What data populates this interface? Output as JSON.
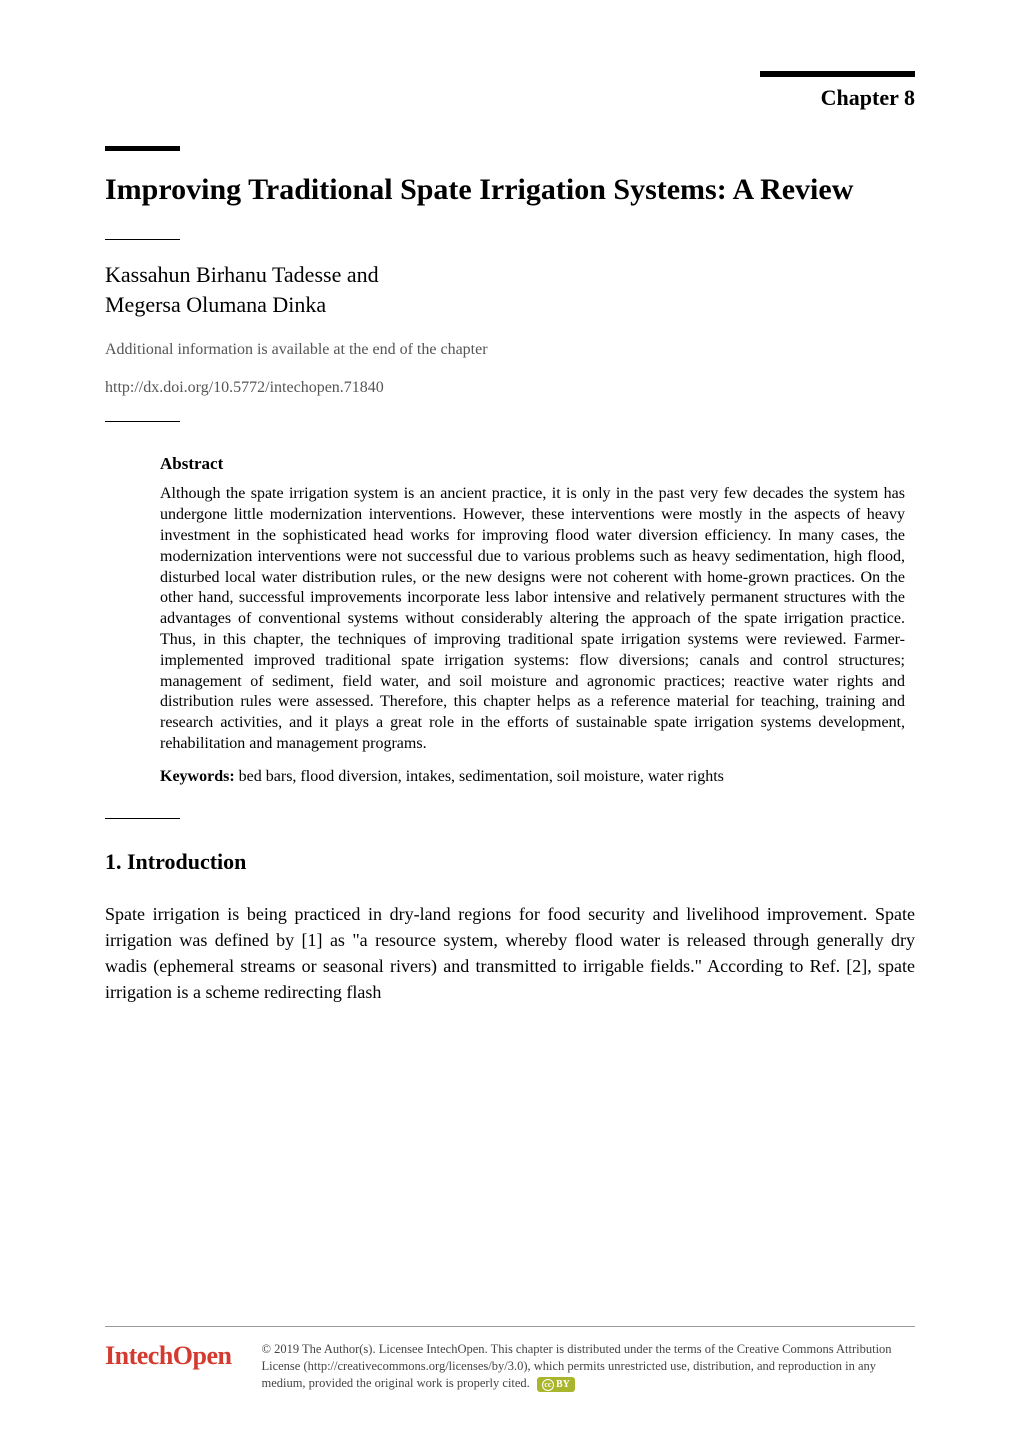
{
  "chapter": {
    "label": "Chapter 8",
    "title": "Improving Traditional Spate Irrigation Systems: A Review"
  },
  "authors": {
    "line1": "Kassahun Birhanu Tadesse and",
    "line2": "Megersa Olumana Dinka"
  },
  "additional_info": "Additional information is available at the end of the chapter",
  "doi": "http://dx.doi.org/10.5772/intechopen.71840",
  "abstract": {
    "heading": "Abstract",
    "text": "Although the spate irrigation system is an ancient practice, it is only in the past very few decades the system has undergone little modernization interventions. However, these interventions were mostly in the aspects of heavy investment in the sophisticated head works for improving flood water diversion efficiency. In many cases, the modernization interventions were not successful due to various problems such as heavy sedimentation, high flood, disturbed local water distribution rules, or the new designs were not coherent with home-grown practices. On the other hand, successful improvements incorporate less labor intensive and relatively permanent structures with the advantages of conventional systems without considerably altering the approach of the spate irrigation practice. Thus, in this chapter, the techniques of improving traditional spate irrigation systems were reviewed. Farmer-implemented improved traditional spate irrigation systems: flow diversions; canals and control structures; management of sediment, field water, and soil moisture and agronomic practices; reactive water rights and distribution rules were assessed. Therefore, this chapter helps as a reference material for teaching, training and research activities, and it plays a great role in the efforts of sustainable spate irrigation systems development, rehabilitation and management programs.",
    "keywords_label": "Keywords:",
    "keywords_text": " bed bars, flood diversion, intakes, sedimentation, soil moisture, water rights"
  },
  "section1": {
    "heading": "1. Introduction",
    "body": "Spate irrigation is being practiced in dry-land regions for food security and livelihood improvement. Spate irrigation was defined by [1] as \"a resource system, whereby flood water is released through generally dry wadis (ephemeral streams or seasonal rivers) and transmitted to irrigable fields.\" According to Ref. [2], spate irrigation is a scheme redirecting flash"
  },
  "footer": {
    "logo": "IntechOpen",
    "copyright": "© 2019 The Author(s). Licensee IntechOpen. This chapter is distributed under the terms of the Creative Commons Attribution License (http://creativecommons.org/licenses/by/3.0), which permits unrestricted use, distribution, and reproduction in any medium, provided the original work is properly cited.",
    "cc_badge": "BY"
  },
  "colors": {
    "text": "#000000",
    "muted": "#555555",
    "logo": "#d43a2f",
    "badge_bg": "#aab52e",
    "background": "#ffffff"
  },
  "typography": {
    "title_fontsize": 30,
    "author_fontsize": 22,
    "body_fontsize": 18,
    "abstract_fontsize": 16,
    "footer_fontsize": 12.5
  }
}
